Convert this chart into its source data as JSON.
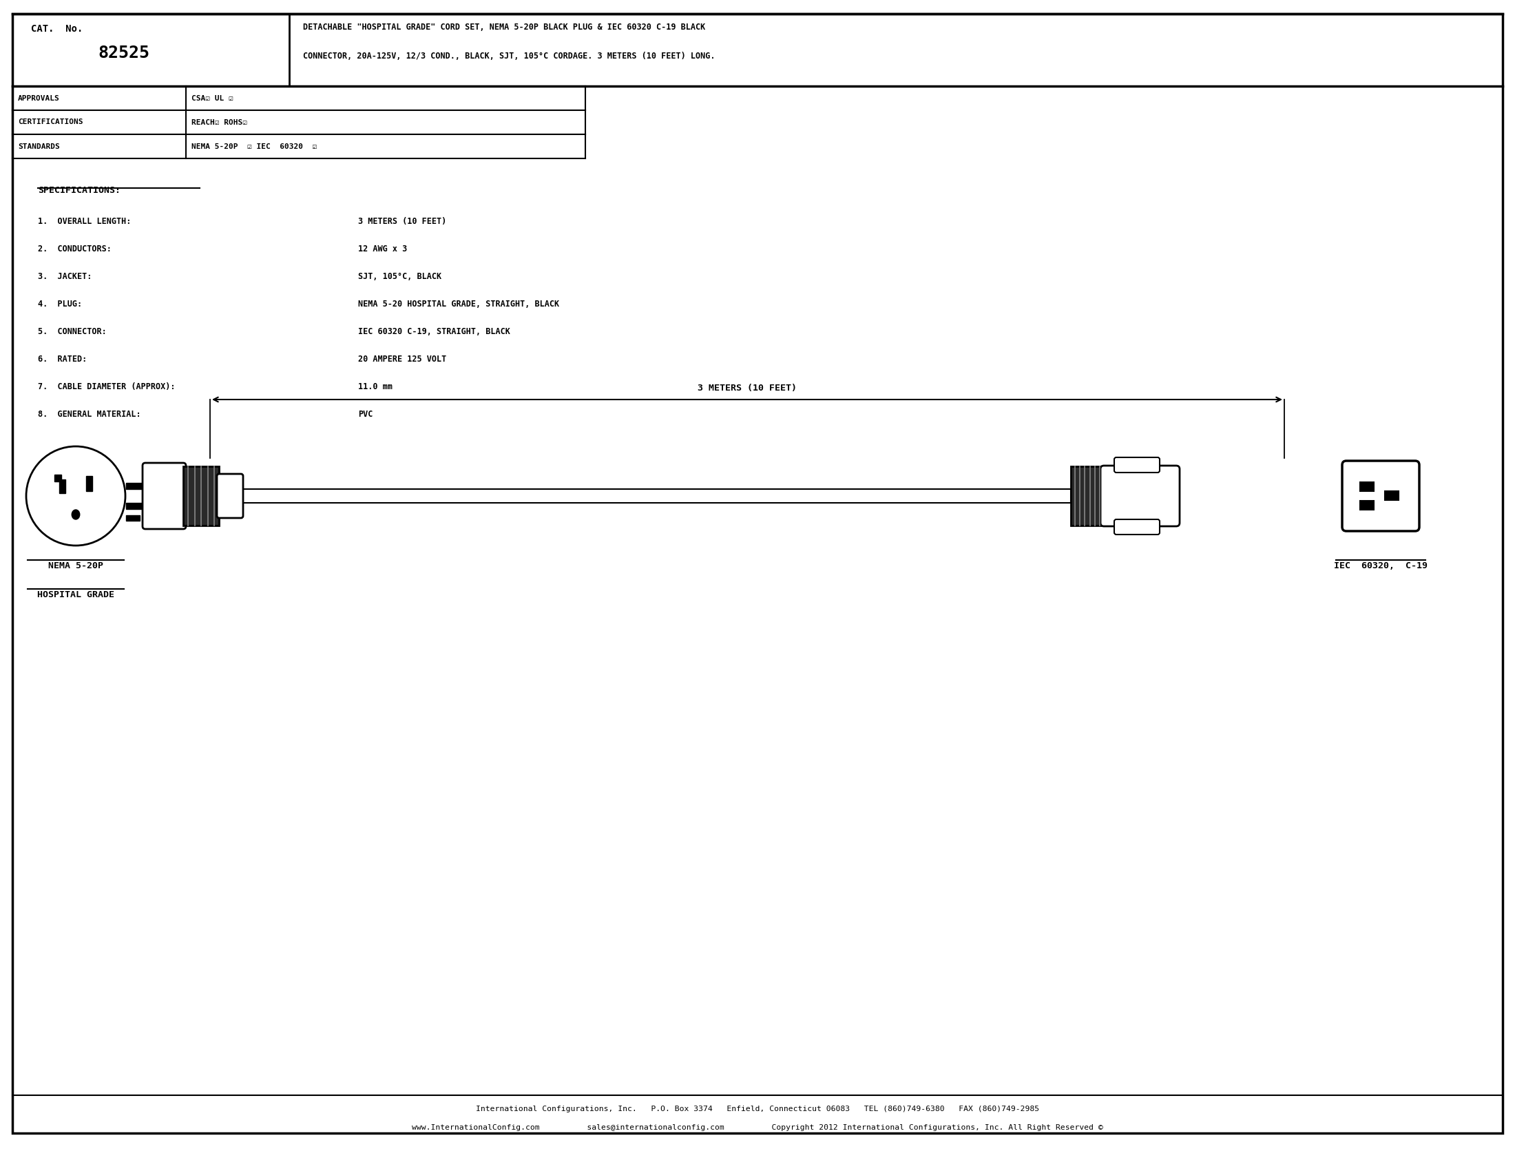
{
  "bg_color": "#ffffff",
  "line_color": "#000000",
  "title_line1": "DETACHABLE \"HOSPITAL GRADE\" CORD SET, NEMA 5-20P BLACK PLUG & IEC 60320 C-19 BLACK",
  "title_line2": "CONNECTOR, 20A-125V, 12/3 COND., BLACK, SJT, 105°C CORDAGE. 3 METERS (10 FEET) LONG.",
  "cat_no": "82525",
  "cat_no_label": "CAT.  No.",
  "approvals_label": "APPROVALS",
  "approvals_value": "CSA☑ UL ☑",
  "certifications_label": "CERTIFICATIONS",
  "certifications_value": "REACH☑ ROHS☑",
  "standards_label": "STANDARDS",
  "standards_value": "NEMA 5-20P  ☑ IEC  60320  ☑",
  "specs_title": "SPECIFICATIONS:",
  "specs": [
    [
      "1.  OVERALL LENGTH:",
      "3 METERS (10 FEET)"
    ],
    [
      "2.  CONDUCTORS:",
      "12 AWG x 3"
    ],
    [
      "3.  JACKET:",
      "SJT, 105°C, BLACK"
    ],
    [
      "4.  PLUG:",
      "NEMA 5-20 HOSPITAL GRADE, STRAIGHT, BLACK"
    ],
    [
      "5.  CONNECTOR:",
      "IEC 60320 C-19, STRAIGHT, BLACK"
    ],
    [
      "6.  RATED:",
      "20 AMPERE 125 VOLT"
    ],
    [
      "7.  CABLE DIAMETER (APPROX):",
      "11.0 mm"
    ],
    [
      "8.  GENERAL MATERIAL:",
      "PVC"
    ]
  ],
  "dim_label": "3 METERS (10 FEET)",
  "label_left_line1": "NEMA 5-20P",
  "label_left_line2": "HOSPITAL GRADE",
  "label_right": "IEC  60320,  C-19",
  "footer1": "International Configurations, Inc.   P.O. Box 3374   Enfield, Connecticut 06083   TEL (860)749-6380   FAX (860)749-2985",
  "footer2": "www.InternationalConfig.com          sales@internationalconfig.com          Copyright 2012 International Configurations, Inc. All Right Reserved ©"
}
